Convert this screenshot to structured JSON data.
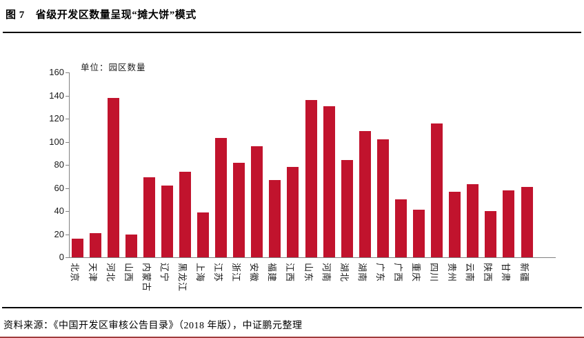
{
  "header": {
    "figure_label": "图 7",
    "title": "省级开发区数量呈现“摊大饼”模式"
  },
  "chart_data": {
    "type": "bar",
    "title": "图 7 省级开发区数量呈现“摊大饼”模式",
    "unit_label": "单位：园区数量",
    "categories": [
      "北京",
      "天津",
      "河北",
      "山西",
      "内蒙古",
      "辽宁",
      "黑龙江",
      "上海",
      "江苏",
      "浙江",
      "安徽",
      "福建",
      "江西",
      "山东",
      "河南",
      "湖北",
      "湖南",
      "广东",
      "广西",
      "重庆",
      "四川",
      "贵州",
      "云南",
      "陕西",
      "甘肃",
      "新疆"
    ],
    "values": [
      16,
      21,
      138,
      20,
      69,
      62,
      74,
      39,
      103,
      82,
      96,
      67,
      78,
      136,
      131,
      84,
      109,
      102,
      50,
      41,
      116,
      57,
      63,
      40,
      58,
      61
    ],
    "xlabel": "",
    "ylabel": "",
    "ylim": [
      0,
      160
    ],
    "yticks": [
      0,
      20,
      40,
      60,
      80,
      100,
      120,
      140,
      160
    ],
    "grid": false,
    "legend_position": "none",
    "bar_color": "#C1132D"
  },
  "footer": {
    "source": "资料来源：《中国开发区审核公告目录》（2018 年版），中证鹏元整理"
  },
  "colors": {
    "bar": "#C1132D",
    "axis": "#808080",
    "title_rule": "#000000",
    "bottom_rule": "#A03C3C"
  }
}
